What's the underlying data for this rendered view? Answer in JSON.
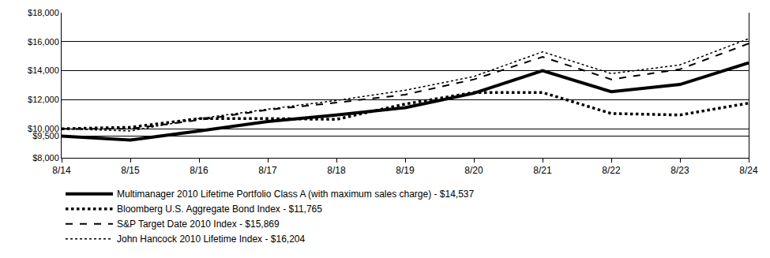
{
  "chart_data": {
    "type": "line",
    "categories": [
      "8/14",
      "8/15",
      "8/16",
      "8/17",
      "8/18",
      "8/19",
      "8/20",
      "8/21",
      "8/22",
      "8/23",
      "8/24"
    ],
    "series": [
      {
        "name": "Multimanager 2010 Lifetime Portfolio Class A (with maximum sales charge) - $14,537",
        "color": "#000000",
        "line_style": "solid",
        "values": [
          9500,
          9220,
          9850,
          10500,
          10950,
          11450,
          12450,
          14000,
          12550,
          13050,
          14537
        ]
      },
      {
        "name": "Bloomberg U.S. Aggregate Bond Index - $11,765",
        "color": "#000000",
        "line_style": "dot",
        "values": [
          10000,
          10100,
          10700,
          10700,
          10650,
          11700,
          12500,
          12500,
          11050,
          10950,
          11765
        ]
      },
      {
        "name": "S&P Target Date 2010 Index - $15,869",
        "color": "#000000",
        "line_style": "dash",
        "values": [
          10000,
          10000,
          10600,
          11300,
          11800,
          12350,
          13400,
          14950,
          13400,
          14100,
          15869
        ]
      },
      {
        "name": "John Hancock 2010 Lifetime Index - $16,204",
        "color": "#000000",
        "line_style": "dot",
        "values": [
          10000,
          9850,
          10700,
          11350,
          11950,
          12650,
          13600,
          15300,
          13800,
          14400,
          16204
        ]
      }
    ],
    "ylim": [
      8000,
      18000
    ],
    "yticks": [
      {
        "value": 8000,
        "label": "$8,000"
      },
      {
        "value": 9500,
        "label": "$9,500"
      },
      {
        "value": 10000,
        "label": "$10,000"
      },
      {
        "value": 12000,
        "label": "$12,000"
      },
      {
        "value": 14000,
        "label": "$14,000"
      },
      {
        "value": 16000,
        "label": "$16,000"
      },
      {
        "value": 18000,
        "label": "$18,000"
      }
    ],
    "grid": true,
    "legend": "bottom left"
  }
}
